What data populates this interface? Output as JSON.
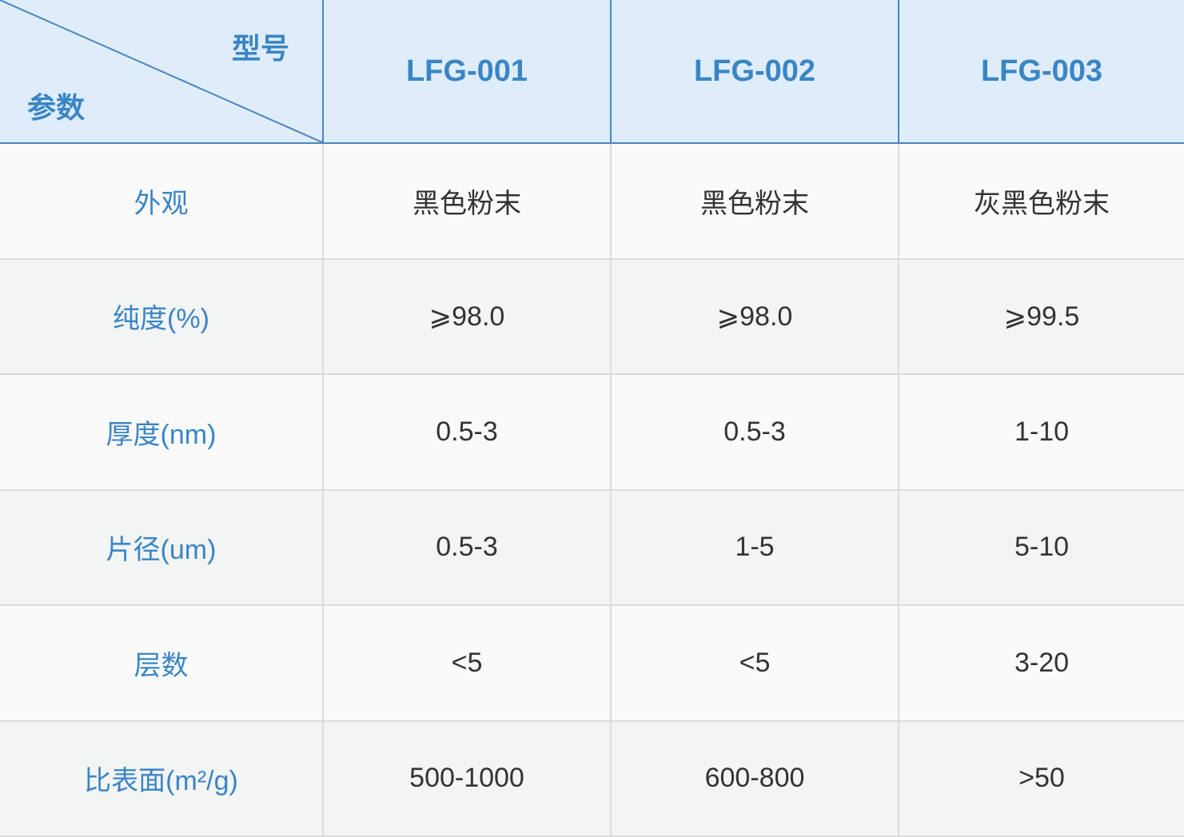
{
  "header": {
    "corner_top": "型号",
    "corner_bottom": "参数",
    "models": [
      "LFG-001",
      "LFG-002",
      "LFG-003"
    ]
  },
  "rows": [
    {
      "label": "外观",
      "values": [
        "黑色粉末",
        "黑色粉末",
        "灰黑色粉末"
      ]
    },
    {
      "label": "纯度(%)",
      "values": [
        "⩾98.0",
        "⩾98.0",
        "⩾99.5"
      ]
    },
    {
      "label": "厚度(nm)",
      "values": [
        "0.5-3",
        "0.5-3",
        "1-10"
      ]
    },
    {
      "label": "片径(um)",
      "values": [
        "0.5-3",
        "1-5",
        "5-10"
      ]
    },
    {
      "label": "层数",
      "values": [
        "<5",
        "<5",
        "3-20"
      ]
    },
    {
      "label": "比表面(m²/g)",
      "values": [
        "500-1000",
        "600-800",
        ">50"
      ]
    }
  ]
}
